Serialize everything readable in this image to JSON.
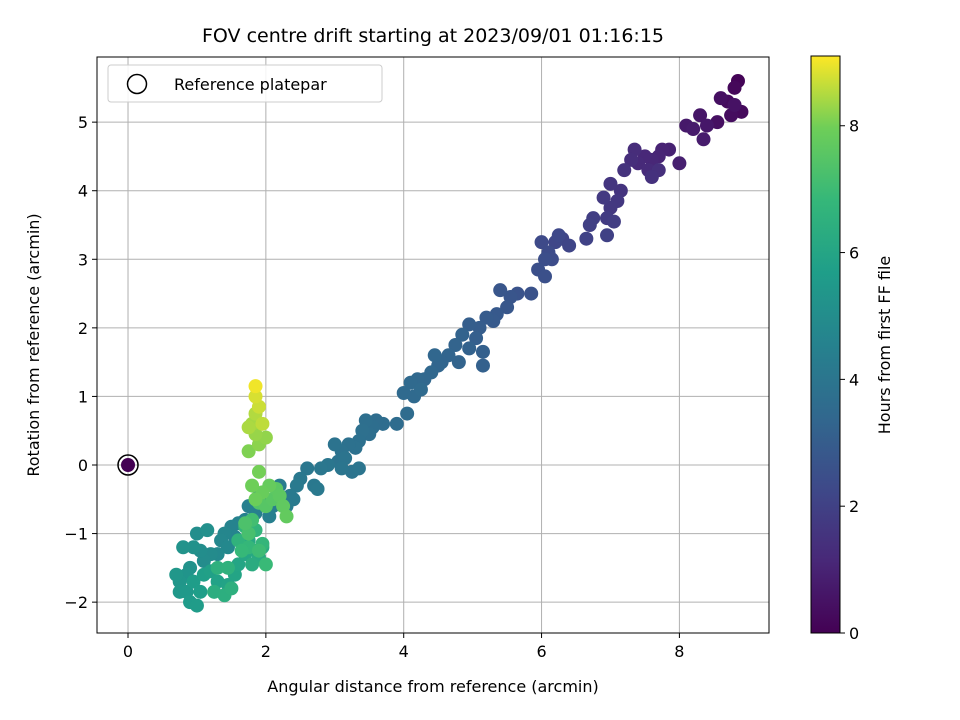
{
  "chart_data": {
    "type": "scatter",
    "title": "FOV centre drift starting at 2023/09/01 01:16:15",
    "xlabel": "Angular distance from reference (arcmin)",
    "ylabel": "Rotation from reference (arcmin)",
    "xlim": [
      -0.45,
      9.3
    ],
    "ylim": [
      -2.45,
      5.95
    ],
    "xticks": [
      0,
      2,
      4,
      6,
      8
    ],
    "yticks": [
      -2,
      -1,
      0,
      1,
      2,
      3,
      4,
      5
    ],
    "xtick_labels": [
      "0",
      "2",
      "4",
      "6",
      "8"
    ],
    "ytick_labels": [
      "−2",
      "−1",
      "0",
      "1",
      "2",
      "3",
      "4",
      "5"
    ],
    "grid": true,
    "legend": {
      "placement": "upper-left",
      "entries": [
        "Reference platepar"
      ]
    },
    "reference_point": {
      "x": 0,
      "y": 0
    },
    "colormap": "viridis",
    "colorbar": {
      "label": "Hours from first FF file",
      "range": [
        0,
        9.1
      ],
      "ticks": [
        0,
        2,
        4,
        6,
        8
      ],
      "tick_labels": [
        "0",
        "2",
        "4",
        "6",
        "8"
      ]
    },
    "series": [
      {
        "points": [
          [
            0.0,
            0.0,
            0.0
          ],
          [
            8.85,
            5.6,
            0.1
          ],
          [
            8.8,
            5.5,
            0.2
          ],
          [
            8.9,
            5.15,
            0.25
          ],
          [
            8.7,
            5.3,
            0.3
          ],
          [
            8.75,
            5.1,
            0.35
          ],
          [
            8.6,
            5.35,
            0.4
          ],
          [
            8.55,
            5.0,
            0.45
          ],
          [
            8.8,
            5.25,
            0.5
          ],
          [
            8.3,
            5.1,
            0.6
          ],
          [
            8.4,
            4.95,
            0.65
          ],
          [
            8.1,
            4.95,
            0.7
          ],
          [
            8.2,
            4.9,
            0.75
          ],
          [
            8.35,
            4.75,
            0.8
          ],
          [
            8.0,
            4.4,
            0.9
          ],
          [
            7.85,
            4.6,
            0.95
          ],
          [
            7.75,
            4.6,
            1.0
          ],
          [
            7.7,
            4.5,
            1.05
          ],
          [
            7.6,
            4.45,
            1.1
          ],
          [
            7.5,
            4.5,
            1.15
          ],
          [
            7.4,
            4.4,
            1.2
          ],
          [
            7.55,
            4.3,
            1.25
          ],
          [
            7.35,
            4.6,
            1.3
          ],
          [
            7.3,
            4.45,
            1.35
          ],
          [
            7.7,
            4.3,
            1.4
          ],
          [
            7.6,
            4.2,
            1.45
          ],
          [
            7.2,
            4.3,
            1.5
          ],
          [
            7.15,
            4.0,
            1.55
          ],
          [
            7.0,
            4.1,
            1.6
          ],
          [
            7.1,
            3.85,
            1.65
          ],
          [
            7.0,
            3.75,
            1.7
          ],
          [
            6.9,
            3.9,
            1.75
          ],
          [
            6.95,
            3.6,
            1.8
          ],
          [
            7.05,
            3.55,
            1.85
          ],
          [
            6.75,
            3.6,
            1.9
          ],
          [
            6.7,
            3.5,
            1.95
          ],
          [
            6.95,
            3.35,
            2.0
          ],
          [
            6.65,
            3.3,
            2.05
          ],
          [
            6.3,
            3.3,
            2.1
          ],
          [
            6.4,
            3.2,
            2.15
          ],
          [
            6.2,
            3.25,
            2.2
          ],
          [
            6.25,
            3.35,
            2.25
          ],
          [
            6.0,
            3.25,
            2.3
          ],
          [
            6.1,
            3.1,
            2.35
          ],
          [
            6.15,
            3.0,
            2.4
          ],
          [
            6.05,
            3.0,
            2.45
          ],
          [
            5.95,
            2.85,
            2.5
          ],
          [
            6.05,
            2.75,
            2.55
          ],
          [
            5.85,
            2.5,
            2.6
          ],
          [
            5.65,
            2.5,
            2.65
          ],
          [
            5.55,
            2.45,
            2.7
          ],
          [
            5.4,
            2.55,
            2.75
          ],
          [
            5.5,
            2.3,
            2.8
          ],
          [
            5.35,
            2.2,
            2.85
          ],
          [
            5.3,
            2.1,
            2.9
          ],
          [
            5.2,
            2.15,
            2.95
          ],
          [
            5.1,
            2.0,
            3.0
          ],
          [
            4.95,
            2.05,
            3.05
          ],
          [
            5.05,
            1.85,
            3.1
          ],
          [
            5.15,
            1.65,
            3.12
          ],
          [
            5.15,
            1.45,
            3.15
          ],
          [
            4.95,
            1.7,
            3.2
          ],
          [
            4.85,
            1.9,
            3.22
          ],
          [
            4.8,
            1.5,
            3.25
          ],
          [
            4.75,
            1.75,
            3.28
          ],
          [
            4.65,
            1.6,
            3.3
          ],
          [
            4.55,
            1.5,
            3.32
          ],
          [
            4.5,
            1.45,
            3.35
          ],
          [
            4.45,
            1.6,
            3.38
          ],
          [
            4.4,
            1.35,
            3.4
          ],
          [
            4.3,
            1.25,
            3.42
          ],
          [
            4.2,
            1.25,
            3.45
          ],
          [
            4.1,
            1.2,
            3.48
          ],
          [
            4.0,
            1.05,
            3.5
          ],
          [
            4.15,
            1.0,
            3.52
          ],
          [
            4.25,
            1.1,
            3.55
          ],
          [
            4.05,
            0.75,
            3.58
          ],
          [
            3.9,
            0.6,
            3.6
          ],
          [
            3.7,
            0.6,
            3.62
          ],
          [
            3.6,
            0.65,
            3.65
          ],
          [
            3.55,
            0.55,
            3.68
          ],
          [
            3.5,
            0.45,
            3.7
          ],
          [
            3.45,
            0.65,
            3.72
          ],
          [
            3.4,
            0.5,
            3.75
          ],
          [
            3.35,
            0.35,
            3.78
          ],
          [
            3.3,
            0.25,
            3.8
          ],
          [
            3.2,
            0.3,
            3.82
          ],
          [
            3.1,
            0.2,
            3.85
          ],
          [
            3.0,
            0.3,
            3.88
          ],
          [
            3.05,
            0.05,
            3.9
          ],
          [
            3.15,
            0.1,
            3.92
          ],
          [
            3.25,
            -0.1,
            3.95
          ],
          [
            3.35,
            -0.05,
            3.98
          ],
          [
            3.1,
            -0.05,
            4.0
          ],
          [
            2.9,
            0.0,
            4.02
          ],
          [
            2.8,
            -0.05,
            4.05
          ],
          [
            2.6,
            -0.05,
            4.08
          ],
          [
            2.5,
            -0.2,
            4.1
          ],
          [
            2.7,
            -0.3,
            4.12
          ],
          [
            2.75,
            -0.35,
            4.15
          ],
          [
            2.45,
            -0.3,
            4.18
          ],
          [
            2.4,
            -0.5,
            4.2
          ],
          [
            2.35,
            -0.45,
            4.22
          ],
          [
            2.3,
            -0.6,
            4.25
          ],
          [
            2.2,
            -0.3,
            4.28
          ],
          [
            2.2,
            -0.55,
            4.3
          ],
          [
            2.1,
            -0.6,
            4.32
          ],
          [
            2.0,
            -0.55,
            4.35
          ],
          [
            1.9,
            -0.45,
            4.38
          ],
          [
            2.05,
            -0.75,
            4.4
          ],
          [
            1.85,
            -0.7,
            4.42
          ],
          [
            1.7,
            -0.8,
            4.45
          ],
          [
            1.75,
            -0.6,
            4.48
          ],
          [
            1.8,
            -0.95,
            4.5
          ],
          [
            1.6,
            -0.85,
            4.55
          ],
          [
            1.5,
            -0.9,
            4.6
          ],
          [
            1.55,
            -1.05,
            4.65
          ],
          [
            1.4,
            -1.0,
            4.7
          ],
          [
            1.35,
            -1.1,
            4.75
          ],
          [
            1.45,
            -1.2,
            4.8
          ],
          [
            1.3,
            -1.3,
            4.85
          ],
          [
            1.2,
            -1.3,
            4.9
          ],
          [
            1.1,
            -1.4,
            4.95
          ],
          [
            1.05,
            -1.25,
            5.0
          ],
          [
            1.0,
            -1.0,
            5.05
          ],
          [
            1.15,
            -0.95,
            5.1
          ],
          [
            0.95,
            -1.2,
            5.15
          ],
          [
            0.9,
            -1.5,
            5.2
          ],
          [
            0.8,
            -1.2,
            5.25
          ],
          [
            0.85,
            -1.6,
            5.3
          ],
          [
            0.75,
            -1.7,
            5.35
          ],
          [
            0.7,
            -1.6,
            5.4
          ],
          [
            0.75,
            -1.85,
            5.45
          ],
          [
            0.85,
            -1.85,
            5.5
          ],
          [
            0.9,
            -2.0,
            5.55
          ],
          [
            1.0,
            -2.05,
            5.6
          ],
          [
            0.95,
            -1.7,
            5.65
          ],
          [
            1.05,
            -1.85,
            5.7
          ],
          [
            1.1,
            -1.6,
            5.75
          ],
          [
            1.2,
            -1.55,
            5.8
          ],
          [
            1.3,
            -1.7,
            5.85
          ],
          [
            1.45,
            -1.75,
            5.9
          ],
          [
            1.55,
            -1.6,
            5.95
          ],
          [
            1.6,
            -1.45,
            6.0
          ],
          [
            1.7,
            -1.3,
            6.05
          ],
          [
            1.75,
            -1.1,
            6.1
          ],
          [
            1.85,
            -1.25,
            6.15
          ],
          [
            1.9,
            -1.35,
            6.2
          ],
          [
            1.95,
            -1.2,
            6.25
          ],
          [
            1.8,
            -1.45,
            6.3
          ],
          [
            1.25,
            -1.85,
            6.35
          ],
          [
            1.4,
            -1.9,
            6.4
          ],
          [
            1.5,
            -1.8,
            6.45
          ],
          [
            1.3,
            -1.5,
            6.5
          ],
          [
            1.45,
            -1.5,
            6.55
          ],
          [
            1.6,
            -1.1,
            6.6
          ],
          [
            1.7,
            -0.9,
            6.65
          ],
          [
            1.85,
            -0.95,
            6.7
          ],
          [
            1.95,
            -1.15,
            6.75
          ],
          [
            1.75,
            -1.2,
            6.8
          ],
          [
            1.65,
            -1.25,
            6.85
          ],
          [
            2.0,
            -1.45,
            6.9
          ],
          [
            1.9,
            -1.25,
            7.0
          ],
          [
            1.8,
            -0.8,
            7.1
          ],
          [
            1.75,
            -1.0,
            7.2
          ],
          [
            1.7,
            -0.85,
            7.3
          ],
          [
            1.9,
            -0.55,
            7.4
          ],
          [
            2.0,
            -0.6,
            7.5
          ],
          [
            2.1,
            -0.5,
            7.55
          ],
          [
            2.15,
            -0.35,
            7.6
          ],
          [
            2.2,
            -0.45,
            7.65
          ],
          [
            2.25,
            -0.6,
            7.7
          ],
          [
            2.3,
            -0.75,
            7.75
          ],
          [
            2.05,
            -0.3,
            7.8
          ],
          [
            1.95,
            -0.4,
            7.85
          ],
          [
            1.85,
            -0.5,
            7.9
          ],
          [
            1.8,
            -0.3,
            7.95
          ],
          [
            1.9,
            -0.1,
            8.0
          ],
          [
            1.75,
            0.2,
            8.1
          ],
          [
            1.9,
            0.3,
            8.2
          ],
          [
            2.0,
            0.4,
            8.25
          ],
          [
            1.85,
            0.45,
            8.3
          ],
          [
            1.8,
            0.6,
            8.4
          ],
          [
            1.75,
            0.55,
            8.45
          ],
          [
            1.85,
            0.75,
            8.5
          ],
          [
            1.95,
            0.6,
            8.6
          ],
          [
            1.9,
            0.85,
            8.7
          ],
          [
            1.85,
            1.0,
            8.8
          ],
          [
            1.85,
            1.15,
            9.0
          ]
        ]
      }
    ]
  }
}
